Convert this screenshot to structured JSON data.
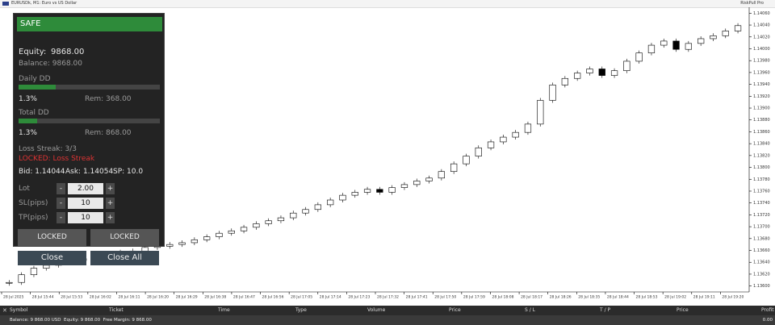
{
  "window": {
    "title": "EURUSDk, M1: Euro vs US Dollar",
    "indicator": "RiskPull Pro"
  },
  "chart_data": {
    "type": "candlestick",
    "closes": [
      1.13606,
      1.13619,
      1.1363,
      1.13635,
      1.13639,
      1.13643,
      1.13646,
      1.13649,
      1.13651,
      1.13657,
      1.13659,
      1.13665,
      1.13667,
      1.1367,
      1.13673,
      1.13678,
      1.13683,
      1.13689,
      1.13693,
      1.13699,
      1.13705,
      1.1371,
      1.13715,
      1.13723,
      1.13729,
      1.13737,
      1.13745,
      1.13753,
      1.13758,
      1.13763,
      1.13758,
      1.13766,
      1.13771,
      1.13777,
      1.13782,
      1.13793,
      1.13806,
      1.13819,
      1.13833,
      1.13843,
      1.13851,
      1.13859,
      1.13873,
      1.13913,
      1.13939,
      1.1395,
      1.13959,
      1.13966,
      1.13955,
      1.13963,
      1.13979,
      1.13993,
      1.14006,
      1.14013,
      1.13999,
      1.14009,
      1.14017,
      1.14022,
      1.1403,
      1.14039
    ],
    "up_color": "#ffffff",
    "down_color": "#000000",
    "ylim": [
      1.1359,
      1.1407
    ],
    "yticks": [
      {
        "value": 1.136,
        "label": "1.13600"
      },
      {
        "value": 1.1362,
        "label": "1.13620"
      },
      {
        "value": 1.1364,
        "label": "1.13640"
      },
      {
        "value": 1.1366,
        "label": "1.13660"
      },
      {
        "value": 1.1368,
        "label": "1.13680"
      },
      {
        "value": 1.137,
        "label": "1.13700"
      },
      {
        "value": 1.1372,
        "label": "1.13720"
      },
      {
        "value": 1.1374,
        "label": "1.13740"
      },
      {
        "value": 1.1376,
        "label": "1.13760"
      },
      {
        "value": 1.1378,
        "label": "1.13780"
      },
      {
        "value": 1.138,
        "label": "1.13800"
      },
      {
        "value": 1.1382,
        "label": "1.13820"
      },
      {
        "value": 1.1384,
        "label": "1.13840"
      },
      {
        "value": 1.1386,
        "label": "1.13860"
      },
      {
        "value": 1.1388,
        "label": "1.13880"
      },
      {
        "value": 1.139,
        "label": "1.13900"
      },
      {
        "value": 1.1392,
        "label": "1.13920"
      },
      {
        "value": 1.1394,
        "label": "1.13940"
      },
      {
        "value": 1.1396,
        "label": "1.13960"
      },
      {
        "value": 1.1398,
        "label": "1.13980"
      },
      {
        "value": 1.14,
        "label": "1.14000"
      },
      {
        "value": 1.1402,
        "label": "1.14020"
      },
      {
        "value": 1.1404,
        "label": "1.14040"
      },
      {
        "value": 1.1406,
        "label": "1.14060"
      }
    ],
    "xticks": [
      "28 Jul 2025",
      "28 Jul 15:44",
      "28 Jul 15:53",
      "28 Jul 16:02",
      "28 Jul 16:11",
      "28 Jul 16:20",
      "28 Jul 16:29",
      "28 Jul 16:38",
      "28 Jul 16:47",
      "28 Jul 16:56",
      "28 Jul 17:05",
      "28 Jul 17:14",
      "28 Jul 17:23",
      "28 Jul 17:32",
      "28 Jul 17:41",
      "28 Jul 17:50",
      "28 Jul 17:59",
      "28 Jul 18:08",
      "28 Jul 18:17",
      "28 Jul 18:26",
      "28 Jul 18:35",
      "28 Jul 18:44",
      "28 Jul 18:53",
      "28 Jul 19:02",
      "28 Jul 19:11",
      "28 Jul 19:20"
    ]
  },
  "panel": {
    "status": "SAFE",
    "equity_label": "Equity:",
    "equity": "9868.00",
    "balance": "Balance: 9868.00",
    "daily_dd": {
      "label": "Daily DD",
      "progress": 26,
      "pct": "1.3%",
      "rem": "Rem: 368.00"
    },
    "total_dd": {
      "label": "Total DD",
      "progress": 13,
      "pct": "1.3%",
      "rem": "Rem: 868.00"
    },
    "loss_streak": "Loss Streak: 3/3",
    "locked": "LOCKED: Loss Streak",
    "quote": {
      "bid": "Bid: 1.14044",
      "ask": "Ask: 1.14054",
      "spread": "SP: 10.0"
    },
    "inputs": [
      {
        "label": "Lot",
        "value": "2.00"
      },
      {
        "label": "SL(pips)",
        "value": "10"
      },
      {
        "label": "TP(pips)",
        "value": "10"
      }
    ],
    "minus": "-",
    "plus": "+",
    "buttons": [
      "LOCKED",
      "LOCKED"
    ],
    "close_buttons": [
      "Close",
      "Close All"
    ]
  },
  "terminal": {
    "columns": [
      "Symbol",
      "Ticket",
      "Time",
      "Type",
      "Volume",
      "Price",
      "S / L",
      "T / P",
      "Price",
      "Profit"
    ],
    "balance_row": "Balance: 9 868.00 USD  Equity: 9 868.00  Free Margin: 9 868.00",
    "profit": "0.00"
  }
}
